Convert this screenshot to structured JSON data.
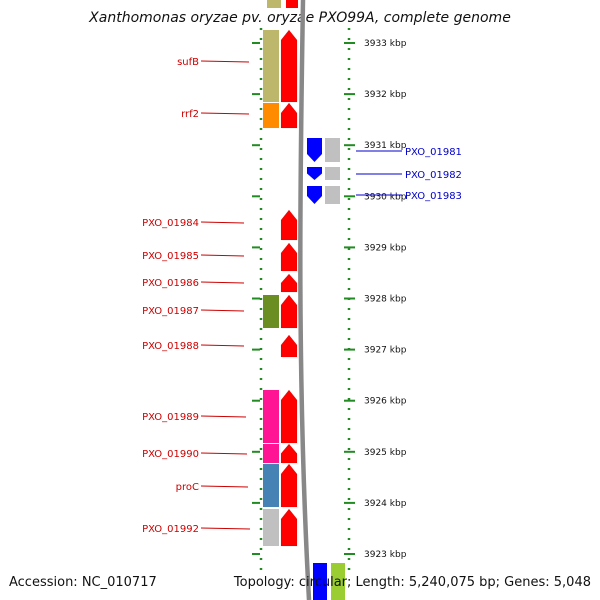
{
  "title": "Xanthomonas oryzae pv. oryzae PXO99A, complete genome",
  "footer": {
    "accession": "Accession: NC_010717",
    "topology": "Topology: circular; Length: 5,240,075 bp; Genes: 5,048"
  },
  "colors": {
    "label_left": "#cc0000",
    "label_right": "#0000cc",
    "axis": "#888888",
    "tick_dots": "#228b22",
    "forward_gene": "#ff0000",
    "reverse_gene": "#0000ff",
    "cog_gray": "#c0c0c0"
  },
  "scale": {
    "unit": "kbp",
    "ticks": [
      3933,
      3932,
      3931,
      3930,
      3929,
      3928,
      3927,
      3926,
      3925,
      3924,
      3923
    ],
    "labels": [
      "3933 kbp",
      "3932 kbp",
      "3931 kbp",
      "3930 kbp",
      "3929 kbp",
      "3928 kbp",
      "3927 kbp",
      "3926 kbp",
      "3925 kbp",
      "3924 kbp",
      "3923 kbp"
    ]
  },
  "genes_left": [
    {
      "label": "sufB",
      "cog_color": "#bdb76b"
    },
    {
      "label": "rrf2",
      "cog_color": "#ff8c00"
    },
    {
      "label": "PXO_01984",
      "cog_color": ""
    },
    {
      "label": "PXO_01985",
      "cog_color": ""
    },
    {
      "label": "PXO_01986",
      "cog_color": ""
    },
    {
      "label": "PXO_01987",
      "cog_color": "#6b8e23"
    },
    {
      "label": "PXO_01988",
      "cog_color": ""
    },
    {
      "label": "PXO_01989",
      "cog_color": "#ff1493"
    },
    {
      "label": "PXO_01990",
      "cog_color": "#ff1493"
    },
    {
      "label": "proC",
      "cog_color": "#4682b4"
    },
    {
      "label": "PXO_01992",
      "cog_color": "#c0c0c0"
    }
  ],
  "genes_right": [
    {
      "label": "PXO_01981",
      "cog_color": "#c0c0c0"
    },
    {
      "label": "PXO_01982",
      "cog_color": "#c0c0c0"
    },
    {
      "label": "PXO_01983",
      "cog_color": "#c0c0c0"
    }
  ]
}
